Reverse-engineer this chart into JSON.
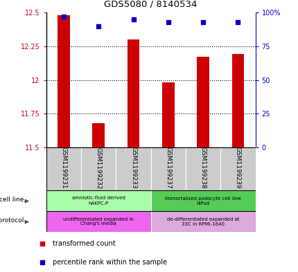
{
  "title": "GDS5080 / 8140534",
  "samples": [
    "GSM1199231",
    "GSM1199232",
    "GSM1199233",
    "GSM1199237",
    "GSM1199238",
    "GSM1199239"
  ],
  "bar_values": [
    12.48,
    11.68,
    12.3,
    11.98,
    12.17,
    12.19
  ],
  "percentile_values": [
    97,
    90,
    95,
    93,
    93,
    93
  ],
  "ylim_left": [
    11.5,
    12.5
  ],
  "ylim_right": [
    0,
    100
  ],
  "yticks_left": [
    11.5,
    11.75,
    12.0,
    12.25,
    12.5
  ],
  "ytick_labels_left": [
    "11.5",
    "11.75",
    "12",
    "12.25",
    "12.5"
  ],
  "ytick_vals_right": [
    0,
    25,
    50,
    75,
    100
  ],
  "ytick_labels_right": [
    "0",
    "25",
    "50",
    "75",
    "100%"
  ],
  "bar_color": "#cc0000",
  "dot_color": "#0000cc",
  "bar_bottom": 11.5,
  "cell_line_groups": [
    {
      "label": "amniotic-fluid derived\nhAKPC-P",
      "color": "#aaffaa",
      "start": 0,
      "end": 3
    },
    {
      "label": "immortalized podocyte cell line\nhIPod",
      "color": "#55cc55",
      "start": 3,
      "end": 6
    }
  ],
  "growth_protocol_groups": [
    {
      "label": "undifferentiated expanded in\nChang's media",
      "color": "#ee66ee",
      "start": 0,
      "end": 3
    },
    {
      "label": "de-differentiated expanded at\n33C in RPMI-1640",
      "color": "#ddaadd",
      "start": 3,
      "end": 6
    }
  ],
  "legend_items": [
    {
      "color": "#cc0000",
      "label": "transformed count"
    },
    {
      "color": "#0000cc",
      "label": "percentile rank within the sample"
    }
  ],
  "left_label_color": "#cc0000",
  "right_label_color": "#0000cc",
  "background_color": "#ffffff",
  "sample_box_color": "#cccccc"
}
